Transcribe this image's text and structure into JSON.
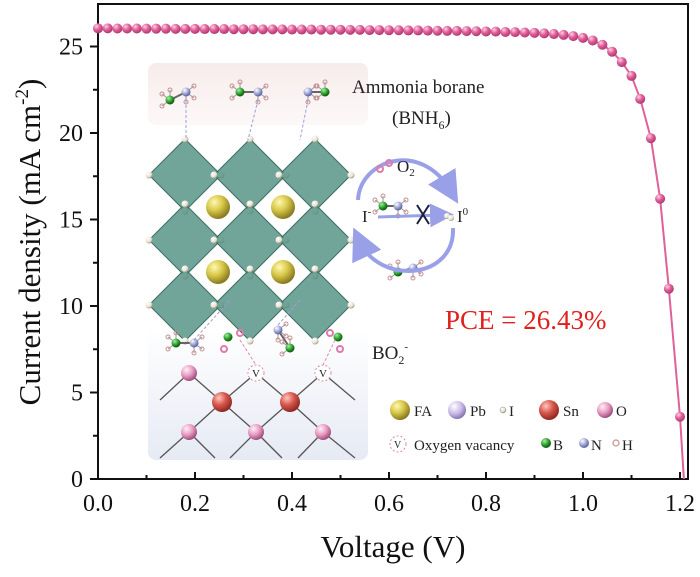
{
  "chart_data": {
    "type": "line",
    "xlabel": "Voltage (V)",
    "ylabel_main": "Current density (mA cm",
    "ylabel_sup": "-2",
    "ylabel_close": ")",
    "xlim": [
      0.0,
      1.22
    ],
    "ylim": [
      0,
      27
    ],
    "xticks": [
      "0.0",
      "0.2",
      "0.4",
      "0.6",
      "0.8",
      "1.0",
      "1.2"
    ],
    "yticks": [
      "0",
      "5",
      "10",
      "15",
      "20",
      "25"
    ],
    "grid": false,
    "marker": "sphere",
    "series": [
      {
        "color": "#e0609a",
        "x": [
          0.0,
          0.02,
          0.04,
          0.06,
          0.08,
          0.1,
          0.12,
          0.14,
          0.16,
          0.18,
          0.2,
          0.22,
          0.24,
          0.26,
          0.28,
          0.3,
          0.32,
          0.34,
          0.36,
          0.38,
          0.4,
          0.42,
          0.44,
          0.46,
          0.48,
          0.5,
          0.52,
          0.54,
          0.56,
          0.58,
          0.6,
          0.62,
          0.64,
          0.66,
          0.68,
          0.7,
          0.72,
          0.74,
          0.76,
          0.78,
          0.8,
          0.82,
          0.84,
          0.86,
          0.88,
          0.9,
          0.92,
          0.94,
          0.96,
          0.98,
          1.0,
          1.02,
          1.04,
          1.06,
          1.08,
          1.1,
          1.118,
          1.14,
          1.159,
          1.177,
          1.2,
          1.208
        ],
        "y": [
          26.05,
          26.05,
          26.04,
          26.04,
          26.04,
          26.03,
          26.03,
          26.03,
          26.02,
          26.02,
          26.02,
          26.01,
          26.01,
          26.01,
          26.0,
          26.0,
          26.0,
          25.99,
          25.99,
          25.99,
          25.98,
          25.98,
          25.98,
          25.97,
          25.97,
          25.97,
          25.96,
          25.96,
          25.95,
          25.95,
          25.94,
          25.94,
          25.93,
          25.93,
          25.92,
          25.91,
          25.9,
          25.9,
          25.89,
          25.88,
          25.87,
          25.86,
          25.84,
          25.83,
          25.81,
          25.79,
          25.76,
          25.72,
          25.67,
          25.6,
          25.5,
          25.35,
          25.1,
          24.7,
          24.1,
          23.3,
          21.97,
          19.7,
          16.2,
          11.0,
          3.6,
          0.0
        ]
      }
    ],
    "annotation": "PCE = 26.43%",
    "annotation_color": "#e0201c"
  },
  "inset": {
    "ammonia_borane": "Ammonia borane",
    "bnh6": "(BNH",
    "bnh6_sub": "6",
    "bnh6_close": ")",
    "o2": "O",
    "o2_sub": "2",
    "i_minus": "I",
    "i_minus_sup": "-",
    "i_zero": "I",
    "i_zero_sup": "0",
    "bo2": "BO",
    "bo2_sub": "2",
    "bo2_sup": "-",
    "vacancy_mark": "V",
    "legend": {
      "fa": "FA",
      "pb": "Pb",
      "i": "I",
      "sn": "Sn",
      "o": "O",
      "vacancy": "Oxygen vacancy",
      "b": "B",
      "n": "N",
      "h": "H"
    },
    "colors": {
      "fa": "#d8c84a",
      "pb": "#c8b8e8",
      "i": "#e8e0d0",
      "sn": "#d8584e",
      "o": "#e89ac0",
      "b": "#2a9a2a",
      "n": "#9aa0d0",
      "h": "#e8b8b0",
      "octahedra": "#4f8f80",
      "arrow": "#9aa0e8"
    }
  }
}
